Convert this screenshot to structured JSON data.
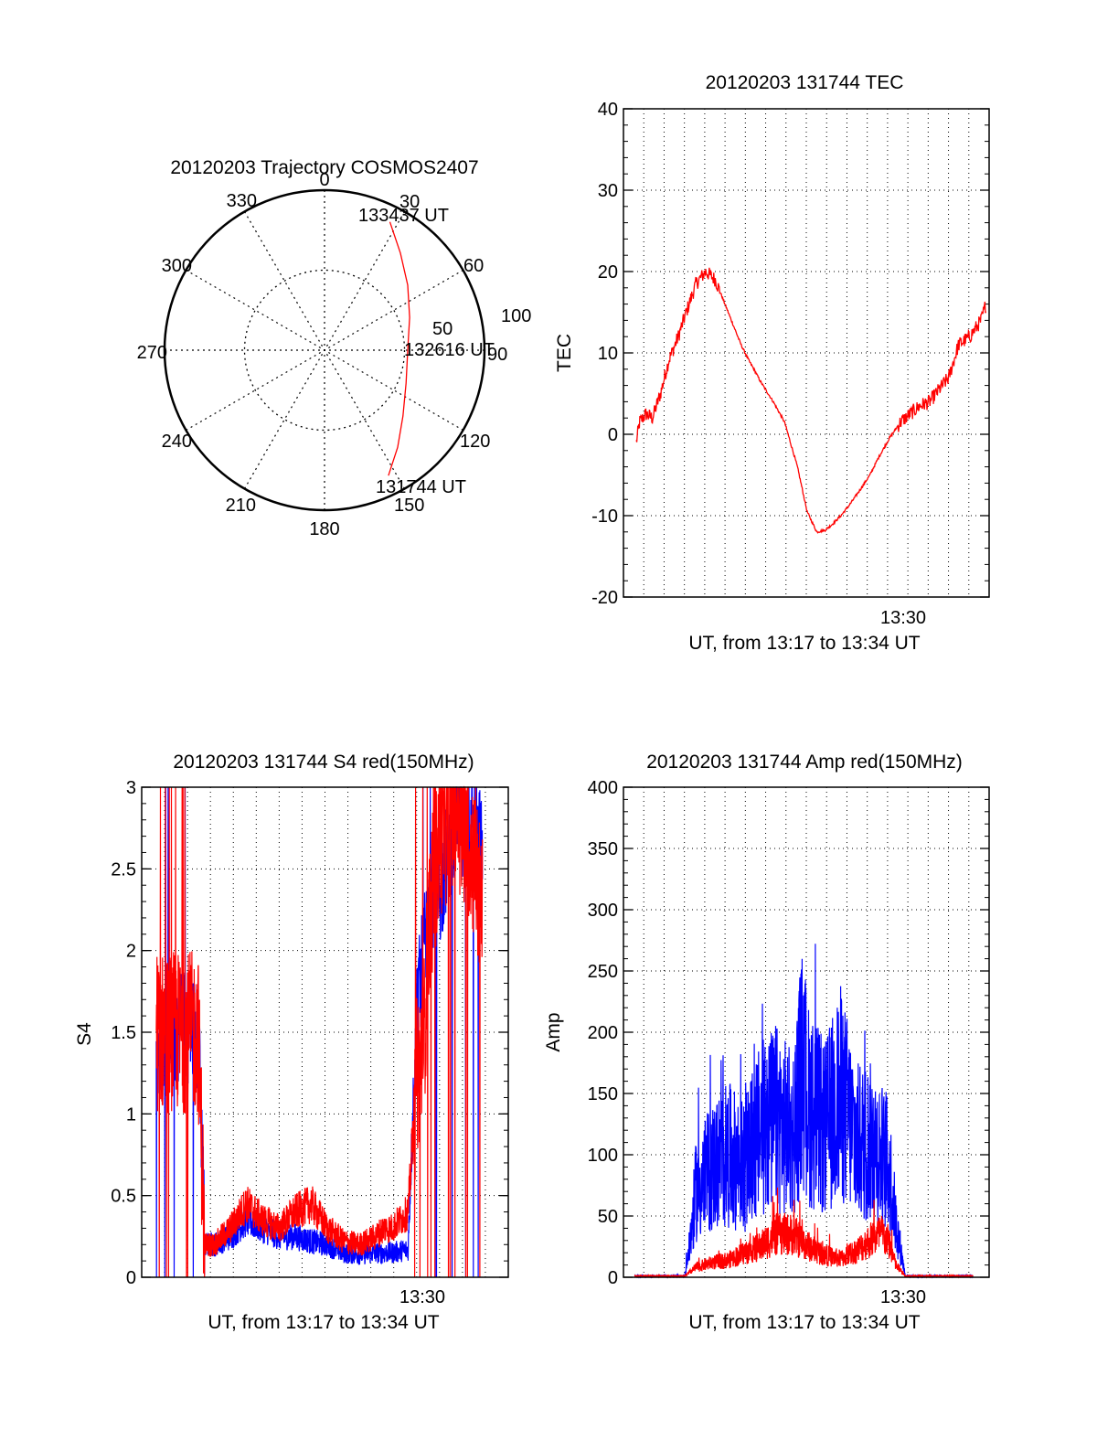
{
  "colors": {
    "red": "#ff0000",
    "blue": "#0000ff",
    "axis": "#000000",
    "grid": "#000000"
  },
  "polar": {
    "title": "20120203 Trajectory COSMOS2407",
    "azimuth_labels": [
      "0",
      "30",
      "60",
      "90",
      "120",
      "150",
      "180",
      "210",
      "240",
      "270",
      "300",
      "330"
    ],
    "radius_labels": [
      "50",
      "100"
    ],
    "start_label": "131744 UT",
    "mid_label": "132616 UT",
    "end_label": "133437 UT"
  },
  "chart_data": [
    {
      "id": "polar",
      "type": "scatter",
      "projection": "polar",
      "title": "20120203 Trajectory COSMOS2407",
      "rlim": [
        0,
        100
      ],
      "theta_ticks": [
        0,
        30,
        60,
        90,
        120,
        150,
        180,
        210,
        240,
        270,
        300,
        330
      ],
      "r_ticks": [
        50,
        100
      ],
      "grid": true,
      "series": [
        {
          "color": "#ff0000",
          "points": [
            {
              "az": 153,
              "r": 88
            },
            {
              "az": 143,
              "r": 76
            },
            {
              "az": 130,
              "r": 64
            },
            {
              "az": 112,
              "r": 55
            },
            {
              "az": 90,
              "r": 52
            },
            {
              "az": 69,
              "r": 57
            },
            {
              "az": 52,
              "r": 66
            },
            {
              "az": 38,
              "r": 77
            },
            {
              "az": 27,
              "r": 90
            }
          ]
        }
      ],
      "annotations": [
        "131744 UT",
        "132616 UT",
        "133437 UT"
      ]
    },
    {
      "id": "tec",
      "type": "line",
      "title": "20120203 131744 TEC",
      "xlabel": "UT, from 13:17 to 13:34 UT",
      "ylabel": "TEC",
      "xlim": [
        "13:17",
        "13:34"
      ],
      "ylim": [
        -20,
        40
      ],
      "yticks": [
        -20,
        -10,
        0,
        10,
        20,
        30,
        40
      ],
      "xtick_label": "13:30",
      "grid": true,
      "series": [
        {
          "color": "#ff0000",
          "x": [
            13.3,
            13.5,
            13.9,
            14.3,
            14.8,
            15.3,
            15.9,
            16.4,
            17.0,
            17.6,
            18.2,
            18.8,
            19.4,
            19.8,
            20.3,
            20.6,
            21.0,
            21.8,
            22.5,
            23.3,
            23.9,
            24.5,
            25.0,
            25.5,
            26.0,
            26.6,
            27.3,
            27.8,
            28.3,
            29.0,
            29.7,
            30.3,
            30.9,
            31.5,
            32.1,
            32.7,
            33.3,
            34.0,
            34.7,
            35.0
          ],
          "y": [
            -1.0,
            1.5,
            2.5,
            2.0,
            5.0,
            9.0,
            12.0,
            15.0,
            18.5,
            20.0,
            19.0,
            16.0,
            13.0,
            11.0,
            9.0,
            8.0,
            6.5,
            4.0,
            1.5,
            -4.0,
            -9.5,
            -12.0,
            -11.8,
            -11.0,
            -10.0,
            -8.5,
            -6.5,
            -5.0,
            -3.0,
            -0.5,
            1.5,
            2.5,
            3.5,
            4.0,
            5.5,
            7.0,
            11.0,
            12.0,
            14.0,
            16.0
          ]
        }
      ]
    },
    {
      "id": "s4",
      "type": "line",
      "title": "20120203 131744 S4 red(150MHz)",
      "xlabel": "UT, from 13:17 to 13:34 UT",
      "ylabel": "S4",
      "xlim": [
        "13:17",
        "13:34"
      ],
      "ylim": [
        0,
        3
      ],
      "yticks": [
        0,
        0.5,
        1,
        1.5,
        2,
        2.5,
        3
      ],
      "ytick_labels": [
        "0",
        "0.5",
        "1",
        "1.5",
        "2",
        "2.5",
        "3"
      ],
      "xtick_label": "13:30",
      "grid": true,
      "series": [
        {
          "color": "#ff0000",
          "x": [
            13.4,
            14.0,
            15.0,
            16.0,
            16.4,
            17.0,
            18.0,
            19.0,
            20.0,
            21.0,
            22.0,
            23.0,
            24.0,
            25.0,
            26.0,
            27.0,
            27.5,
            28.0,
            29.0,
            29.5,
            30.0,
            30.3,
            31.0,
            32.0,
            33.0,
            33.6
          ],
          "y": [
            1.5,
            1.5,
            1.5,
            1.5,
            0.2,
            0.2,
            0.3,
            0.45,
            0.35,
            0.3,
            0.4,
            0.45,
            0.3,
            0.22,
            0.2,
            0.25,
            0.3,
            0.3,
            0.4,
            1.2,
            1.5,
            2.2,
            2.7,
            2.9,
            2.6,
            2.2
          ]
        },
        {
          "color": "#0000ff",
          "x": [
            13.4,
            14.0,
            15.0,
            16.0,
            16.4,
            17.0,
            18.0,
            19.0,
            20.0,
            21.0,
            22.0,
            23.0,
            24.0,
            25.0,
            26.0,
            27.0,
            28.0,
            29.0,
            29.5,
            30.0,
            31.0,
            32.0,
            33.0,
            33.6
          ],
          "y": [
            1.45,
            1.5,
            1.55,
            1.5,
            0.2,
            0.2,
            0.25,
            0.35,
            0.3,
            0.25,
            0.25,
            0.22,
            0.2,
            0.15,
            0.14,
            0.15,
            0.15,
            0.17,
            1.6,
            2.0,
            2.4,
            2.8,
            2.8,
            2.6
          ]
        }
      ]
    },
    {
      "id": "amp",
      "type": "line",
      "title": "20120203 131744 Amp red(150MHz)",
      "xlabel": "UT, from 13:17 to 13:34 UT",
      "ylabel": "Amp",
      "xlim": [
        "13:17",
        "13:34"
      ],
      "ylim": [
        0,
        400
      ],
      "yticks": [
        0,
        50,
        100,
        150,
        200,
        250,
        300,
        350,
        400
      ],
      "xtick_label": "13:30",
      "grid": true,
      "series": [
        {
          "color": "#0000ff",
          "x": [
            13.2,
            16.3,
            16.6,
            17.0,
            18.0,
            19.0,
            20.0,
            21.0,
            22.0,
            23.0,
            23.6,
            24.0,
            25.0,
            26.0,
            27.0,
            28.0,
            29.0,
            29.4,
            30.0,
            34.2
          ],
          "y": [
            1,
            1,
            25,
            70,
            90,
            100,
            90,
            120,
            130,
            115,
            170,
            140,
            120,
            150,
            110,
            110,
            90,
            45,
            1,
            1
          ]
        },
        {
          "color": "#ff0000",
          "x": [
            13.2,
            16.3,
            17.0,
            18.0,
            19.0,
            20.0,
            21.0,
            22.0,
            23.0,
            24.0,
            25.0,
            26.0,
            27.0,
            28.0,
            28.5,
            29.0,
            29.4,
            30.0,
            34.2
          ],
          "y": [
            1,
            1,
            8,
            12,
            14,
            20,
            25,
            35,
            35,
            25,
            18,
            15,
            22,
            32,
            35,
            28,
            10,
            1,
            1
          ]
        }
      ]
    }
  ]
}
